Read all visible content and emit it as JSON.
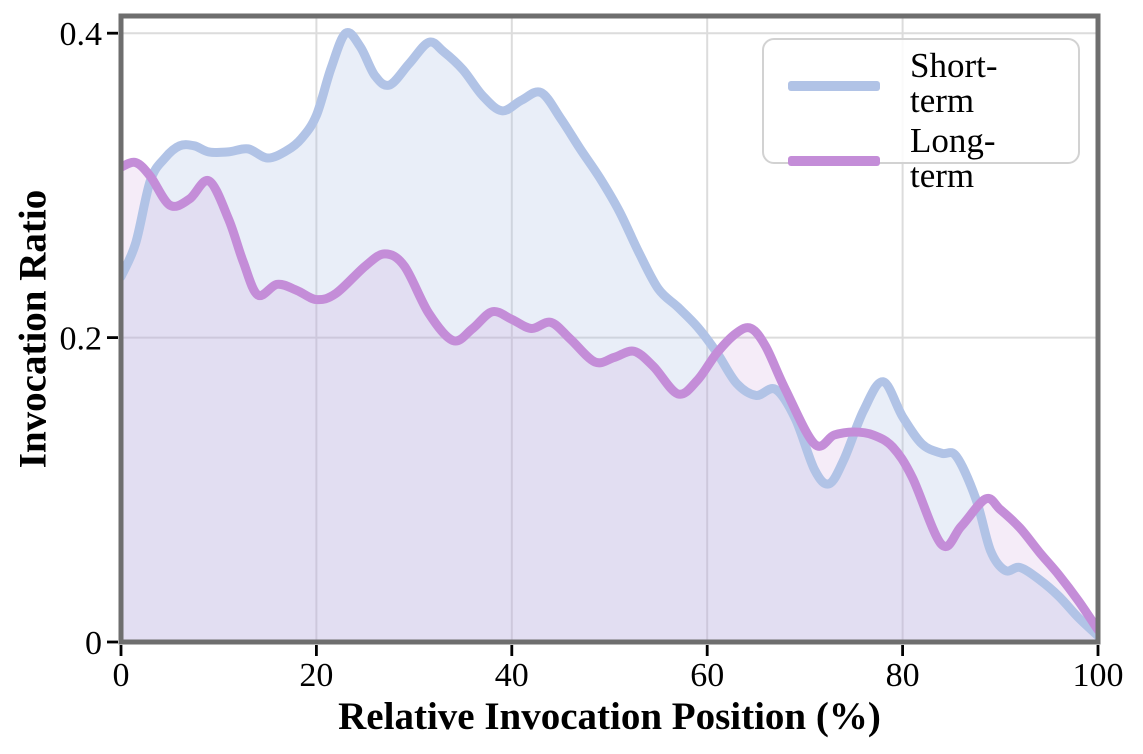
{
  "chart_data": {
    "type": "area",
    "title": "",
    "xlabel": "Relative Invocation Position (%)",
    "ylabel": "Invocation Ratio",
    "xlim": [
      0,
      100
    ],
    "ylim": [
      0,
      0.4113
    ],
    "x_ticks": [
      0,
      20,
      40,
      60,
      80,
      100
    ],
    "x_tick_labels": [
      "0",
      "20",
      "40",
      "60",
      "80",
      "100"
    ],
    "y_ticks": [
      0,
      0.2,
      0.4
    ],
    "y_tick_labels": [
      "0",
      "0.2",
      "0.4"
    ],
    "grid": true,
    "grid_color": "#dcdcdc",
    "spine_color": "#6e6e6e",
    "tick_color": "#000000",
    "legend_position": "upper right",
    "legend_border_color": "#d2d2d2",
    "series": [
      {
        "name": "Short-term",
        "color": "#b1c3e6",
        "fill": "rgba(177,195,229,0.28)",
        "x": [
          0,
          1.5,
          3,
          4.5,
          6,
          7.5,
          9,
          11,
          13,
          15,
          17,
          18.5,
          20,
          21.5,
          23,
          24.5,
          26,
          27.5,
          29.5,
          31.5,
          33,
          35,
          37,
          39,
          41,
          43,
          45,
          47,
          49,
          51,
          53,
          55,
          57,
          59,
          61,
          63,
          65,
          67,
          69,
          71,
          72.5,
          74,
          76,
          78,
          80,
          82,
          84,
          85.5,
          87.5,
          89,
          90.5,
          92,
          94,
          96,
          98,
          100
        ],
        "y": [
          0.24,
          0.262,
          0.303,
          0.318,
          0.326,
          0.326,
          0.322,
          0.322,
          0.324,
          0.318,
          0.323,
          0.331,
          0.346,
          0.377,
          0.4,
          0.391,
          0.372,
          0.366,
          0.38,
          0.394,
          0.388,
          0.376,
          0.359,
          0.349,
          0.356,
          0.361,
          0.344,
          0.324,
          0.305,
          0.283,
          0.256,
          0.232,
          0.22,
          0.207,
          0.19,
          0.17,
          0.162,
          0.166,
          0.147,
          0.113,
          0.104,
          0.12,
          0.152,
          0.171,
          0.148,
          0.13,
          0.124,
          0.122,
          0.094,
          0.06,
          0.047,
          0.049,
          0.041,
          0.03,
          0.016,
          0.004
        ]
      },
      {
        "name": "Long-term",
        "color": "#c48dd8",
        "fill": "rgba(196,141,216,0.17)",
        "x": [
          0,
          1.5,
          3,
          5,
          7,
          9,
          11,
          12.5,
          14,
          16,
          18,
          20,
          22,
          25,
          27,
          29,
          31.5,
          34,
          36,
          38,
          40,
          42,
          44,
          46,
          48.5,
          50.5,
          52.5,
          54.5,
          57,
          59,
          61,
          63,
          64.5,
          66,
          68,
          71,
          73,
          75,
          77,
          79,
          81,
          84,
          86,
          88.5,
          90,
          92,
          94,
          96,
          98,
          100
        ],
        "y": [
          0.312,
          0.315,
          0.306,
          0.287,
          0.291,
          0.303,
          0.278,
          0.25,
          0.228,
          0.235,
          0.231,
          0.225,
          0.229,
          0.247,
          0.255,
          0.247,
          0.216,
          0.198,
          0.206,
          0.217,
          0.212,
          0.206,
          0.21,
          0.199,
          0.184,
          0.187,
          0.191,
          0.181,
          0.163,
          0.172,
          0.19,
          0.203,
          0.206,
          0.194,
          0.166,
          0.13,
          0.136,
          0.138,
          0.136,
          0.128,
          0.108,
          0.064,
          0.076,
          0.094,
          0.087,
          0.075,
          0.059,
          0.044,
          0.027,
          0.008
        ]
      }
    ]
  }
}
